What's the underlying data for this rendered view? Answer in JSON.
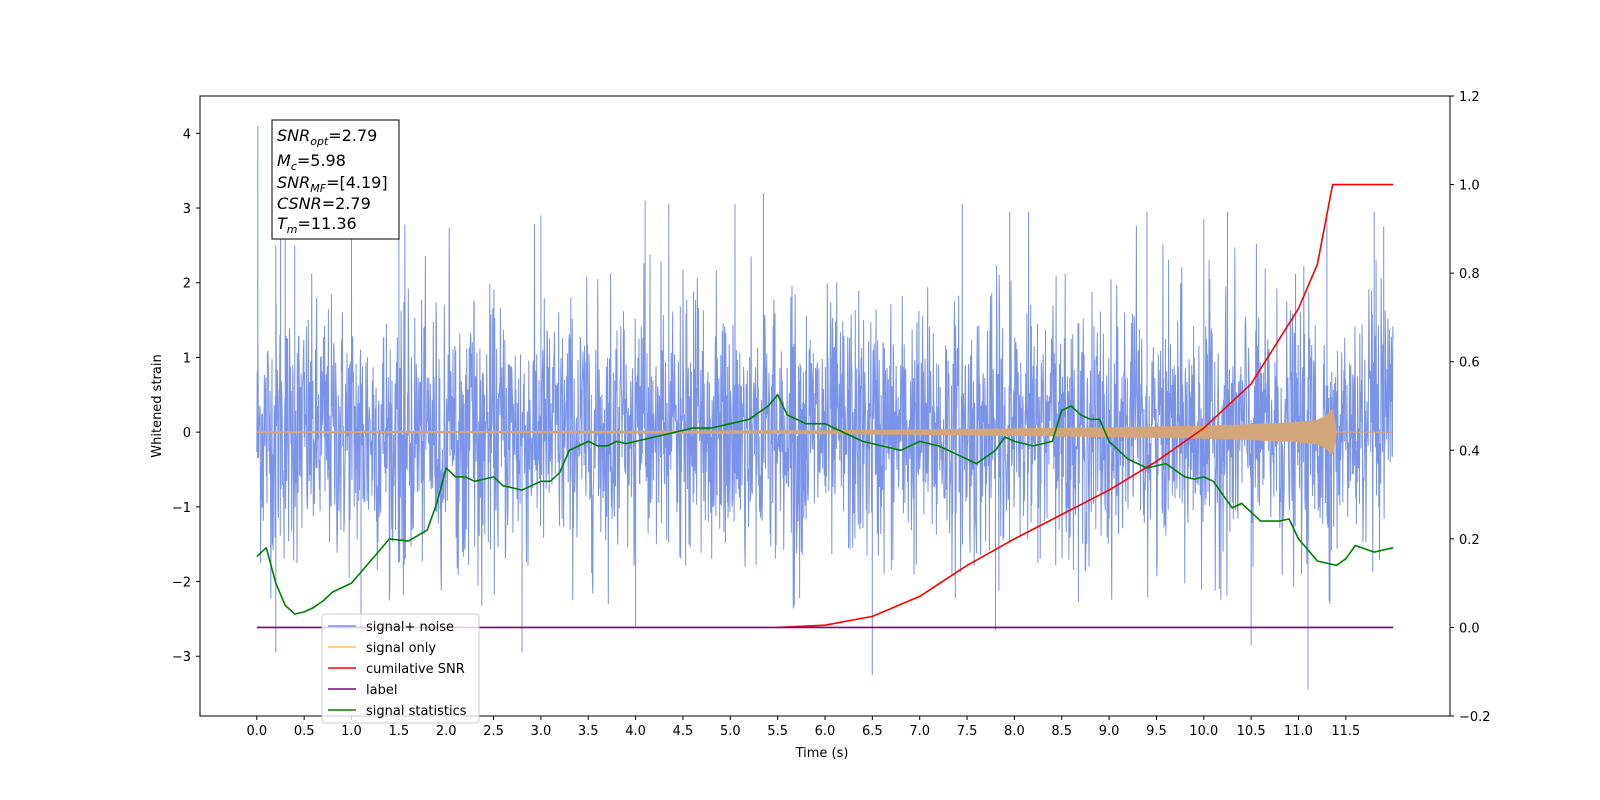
{
  "chart_data": {
    "type": "line",
    "xlabel": "Time (s)",
    "ylabel": "Whitened strain",
    "xlim": [
      -0.6,
      12.6
    ],
    "ylim": [
      -3.8,
      4.5
    ],
    "y2lim": [
      -0.2,
      1.2
    ],
    "grid": false,
    "x_ticks": [
      "0.0",
      "0.5",
      "1.0",
      "1.5",
      "2.0",
      "2.5",
      "3.0",
      "3.5",
      "4.0",
      "4.5",
      "5.0",
      "5.5",
      "6.0",
      "6.5",
      "7.0",
      "7.5",
      "8.0",
      "8.5",
      "9.0",
      "9.5",
      "10.0",
      "10.5",
      "11.0",
      "11.5"
    ],
    "y_ticks": [
      "−3",
      "−2",
      "−1",
      "0",
      "1",
      "2",
      "3",
      "4"
    ],
    "y2_ticks": [
      "−0.2",
      "0.0",
      "0.2",
      "0.4",
      "0.6",
      "0.8",
      "1.0",
      "1.2"
    ],
    "annotation": {
      "snr_opt": {
        "base": "SNR",
        "sub": "opt",
        "value": "=2.79"
      },
      "mc": {
        "base": "M",
        "sub": "c",
        "value": "=5.98"
      },
      "snr_mf": {
        "base": "SNR",
        "sub": "MF",
        "value": "=[4.19]"
      },
      "csnr": {
        "base": "CSNR",
        "value": "=2.79"
      },
      "tm": {
        "base": "T",
        "sub": "m",
        "value": "=11.36"
      }
    },
    "legend": {
      "placement": "lower-left",
      "entries": [
        {
          "label": "signal+ noise",
          "color": "#7b93e8"
        },
        {
          "label": "signal only",
          "color": "#ffbf5f"
        },
        {
          "label": "cumilative SNR",
          "color": "#ff0000"
        },
        {
          "label": "label",
          "color": "#800080"
        },
        {
          "label": "signal statistics",
          "color": "#008000"
        }
      ]
    },
    "series": [
      {
        "name": "signal+ noise",
        "axis": "left",
        "color": "#7b93e8",
        "description_range": [
          -2.4,
          2.8
        ],
        "x_range": [
          0.0,
          12.0
        ],
        "spikes": [
          [
            0.01,
            4.1
          ],
          [
            0.2,
            2.5
          ],
          [
            0.25,
            3.1
          ],
          [
            0.3,
            3.0
          ],
          [
            0.4,
            2.5
          ],
          [
            1.0,
            2.9
          ],
          [
            1.5,
            2.8
          ],
          [
            3.0,
            2.9
          ],
          [
            4.1,
            3.1
          ],
          [
            4.35,
            3.05
          ],
          [
            5.05,
            3.05
          ],
          [
            5.35,
            3.2
          ],
          [
            7.45,
            3.05
          ],
          [
            7.95,
            2.95
          ],
          [
            8.15,
            2.95
          ],
          [
            9.4,
            2.95
          ],
          [
            10.0,
            2.85
          ],
          [
            10.25,
            2.95
          ],
          [
            11.3,
            2.9
          ],
          [
            11.8,
            2.95
          ],
          [
            11.9,
            2.75
          ],
          [
            0.2,
            -2.95
          ],
          [
            1.1,
            -2.7
          ],
          [
            2.8,
            -2.7
          ],
          [
            2.8,
            -2.95
          ],
          [
            6.5,
            -3.25
          ],
          [
            7.8,
            -2.65
          ],
          [
            10.5,
            -2.85
          ],
          [
            11.1,
            -3.45
          ],
          [
            6.5,
            -2.7
          ],
          [
            4.0,
            -2.6
          ]
        ]
      },
      {
        "name": "signal only",
        "axis": "left",
        "color": "#d2a679",
        "x_range": [
          0.0,
          12.0
        ],
        "envelope": [
          [
            0.0,
            0.005
          ],
          [
            2.0,
            0.008
          ],
          [
            4.0,
            0.012
          ],
          [
            6.0,
            0.02
          ],
          [
            7.0,
            0.03
          ],
          [
            8.0,
            0.045
          ],
          [
            9.0,
            0.06
          ],
          [
            10.0,
            0.08
          ],
          [
            10.5,
            0.1
          ],
          [
            11.0,
            0.13
          ],
          [
            11.2,
            0.16
          ],
          [
            11.3,
            0.22
          ],
          [
            11.36,
            0.32
          ],
          [
            11.4,
            0.0
          ]
        ]
      },
      {
        "name": "cumilative SNR",
        "axis": "right",
        "color": "#ff0000",
        "x": [
          5.5,
          6.0,
          6.5,
          7.0,
          7.5,
          8.0,
          8.5,
          9.0,
          9.5,
          10.0,
          10.5,
          11.0,
          11.2,
          11.36,
          11.5,
          12.0
        ],
        "y": [
          0.0,
          0.005,
          0.025,
          0.07,
          0.14,
          0.2,
          0.255,
          0.31,
          0.375,
          0.45,
          0.55,
          0.72,
          0.82,
          1.0,
          1.0,
          1.0
        ]
      },
      {
        "name": "label",
        "axis": "right",
        "color": "#800080",
        "x": [
          0.0,
          12.0
        ],
        "y": [
          0.0,
          0.0
        ]
      },
      {
        "name": "signal statistics",
        "axis": "right",
        "color": "#008000",
        "x": [
          0.0,
          0.1,
          0.2,
          0.3,
          0.4,
          0.5,
          0.6,
          0.7,
          0.8,
          0.9,
          1.0,
          1.2,
          1.4,
          1.6,
          1.8,
          1.9,
          2.0,
          2.1,
          2.2,
          2.3,
          2.4,
          2.5,
          2.6,
          2.7,
          2.8,
          2.9,
          3.0,
          3.1,
          3.2,
          3.3,
          3.4,
          3.5,
          3.6,
          3.7,
          3.8,
          3.9,
          4.0,
          4.2,
          4.4,
          4.6,
          4.8,
          5.0,
          5.2,
          5.4,
          5.5,
          5.6,
          5.8,
          6.0,
          6.2,
          6.4,
          6.6,
          6.8,
          7.0,
          7.2,
          7.4,
          7.5,
          7.6,
          7.8,
          7.9,
          8.0,
          8.2,
          8.4,
          8.5,
          8.6,
          8.7,
          8.8,
          8.9,
          9.0,
          9.2,
          9.4,
          9.6,
          9.8,
          9.9,
          10.0,
          10.1,
          10.2,
          10.3,
          10.4,
          10.6,
          10.8,
          10.9,
          11.0,
          11.1,
          11.2,
          11.4,
          11.5,
          11.6,
          11.8,
          12.0
        ],
        "y": [
          0.16,
          0.18,
          0.1,
          0.05,
          0.03,
          0.035,
          0.045,
          0.06,
          0.08,
          0.09,
          0.1,
          0.15,
          0.2,
          0.195,
          0.22,
          0.28,
          0.36,
          0.34,
          0.34,
          0.33,
          0.335,
          0.34,
          0.32,
          0.315,
          0.31,
          0.32,
          0.33,
          0.33,
          0.35,
          0.4,
          0.41,
          0.42,
          0.41,
          0.41,
          0.42,
          0.415,
          0.42,
          0.43,
          0.44,
          0.45,
          0.45,
          0.46,
          0.47,
          0.5,
          0.525,
          0.48,
          0.46,
          0.46,
          0.44,
          0.42,
          0.41,
          0.4,
          0.42,
          0.41,
          0.39,
          0.38,
          0.37,
          0.4,
          0.43,
          0.42,
          0.41,
          0.42,
          0.49,
          0.5,
          0.48,
          0.47,
          0.47,
          0.42,
          0.38,
          0.36,
          0.37,
          0.34,
          0.335,
          0.34,
          0.33,
          0.3,
          0.27,
          0.28,
          0.24,
          0.24,
          0.245,
          0.2,
          0.175,
          0.15,
          0.14,
          0.155,
          0.185,
          0.17,
          0.18
        ]
      }
    ]
  }
}
